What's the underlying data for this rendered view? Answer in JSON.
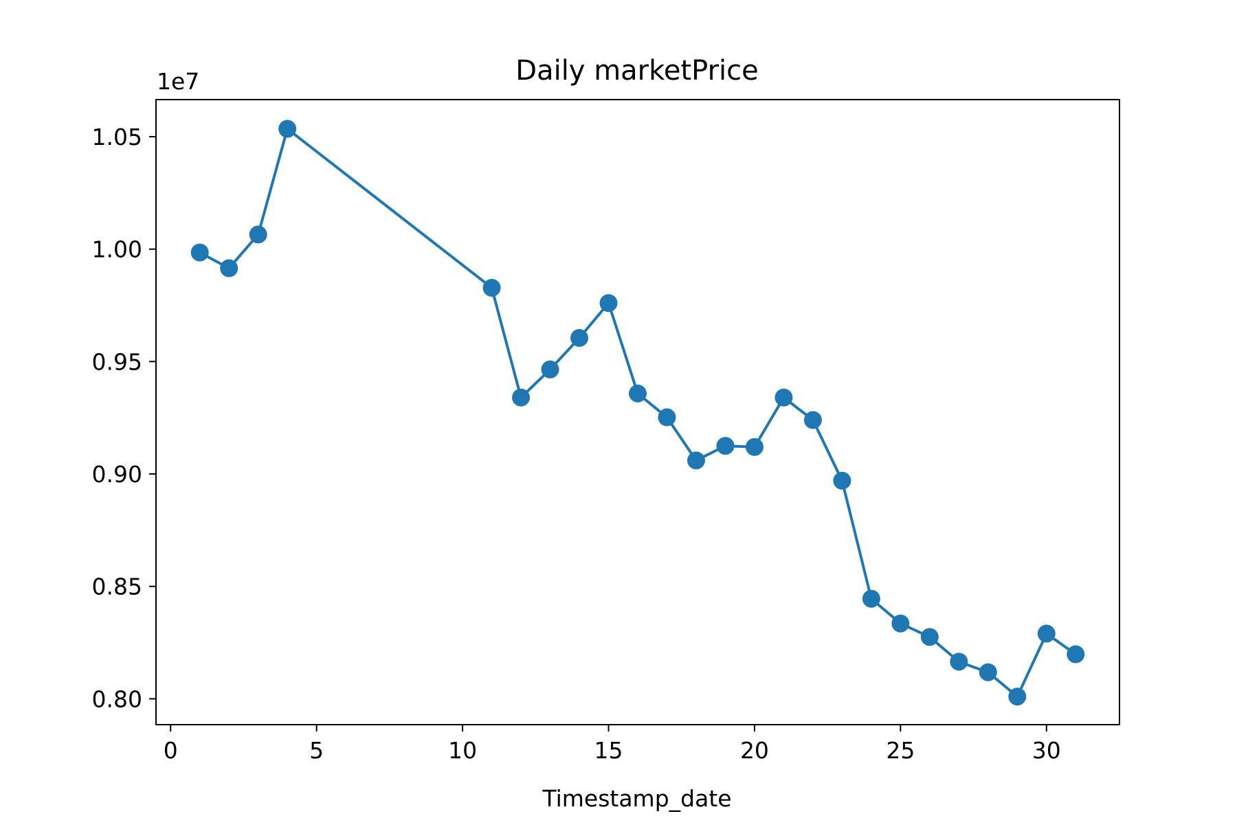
{
  "chart_data": {
    "type": "line",
    "title": "Daily marketPrice",
    "xlabel": "Timestamp_date",
    "ylabel": "",
    "y_offset_text": "1e7",
    "xlim": [
      -0.5,
      32.5
    ],
    "ylim": [
      0.7885,
      1.0665
    ],
    "x_ticks": [
      {
        "value": 0,
        "label": "0"
      },
      {
        "value": 5,
        "label": "5"
      },
      {
        "value": 10,
        "label": "10"
      },
      {
        "value": 15,
        "label": "15"
      },
      {
        "value": 20,
        "label": "20"
      },
      {
        "value": 25,
        "label": "25"
      },
      {
        "value": 30,
        "label": "30"
      }
    ],
    "y_ticks": [
      {
        "value": 0.8,
        "label": "0.80"
      },
      {
        "value": 0.85,
        "label": "0.85"
      },
      {
        "value": 0.9,
        "label": "0.90"
      },
      {
        "value": 0.95,
        "label": "0.95"
      },
      {
        "value": 1.0,
        "label": "1.00"
      },
      {
        "value": 1.05,
        "label": "1.05"
      }
    ],
    "grid": false,
    "legend": "none",
    "series": [
      {
        "color": "#1f77b4",
        "marker": "circle",
        "x": [
          1,
          2,
          3,
          4,
          11,
          12,
          13,
          14,
          15,
          16,
          17,
          18,
          19,
          20,
          21,
          22,
          23,
          24,
          25,
          26,
          27,
          28,
          29,
          30,
          31
        ],
        "y": [
          0.9985,
          0.9915,
          1.0065,
          1.0535,
          0.9828,
          0.934,
          0.9465,
          0.9605,
          0.976,
          0.9358,
          0.9252,
          0.906,
          0.9125,
          0.912,
          0.934,
          0.924,
          0.897,
          0.8445,
          0.8335,
          0.8275,
          0.8165,
          0.8118,
          0.801,
          0.829,
          0.8198
        ]
      }
    ]
  }
}
